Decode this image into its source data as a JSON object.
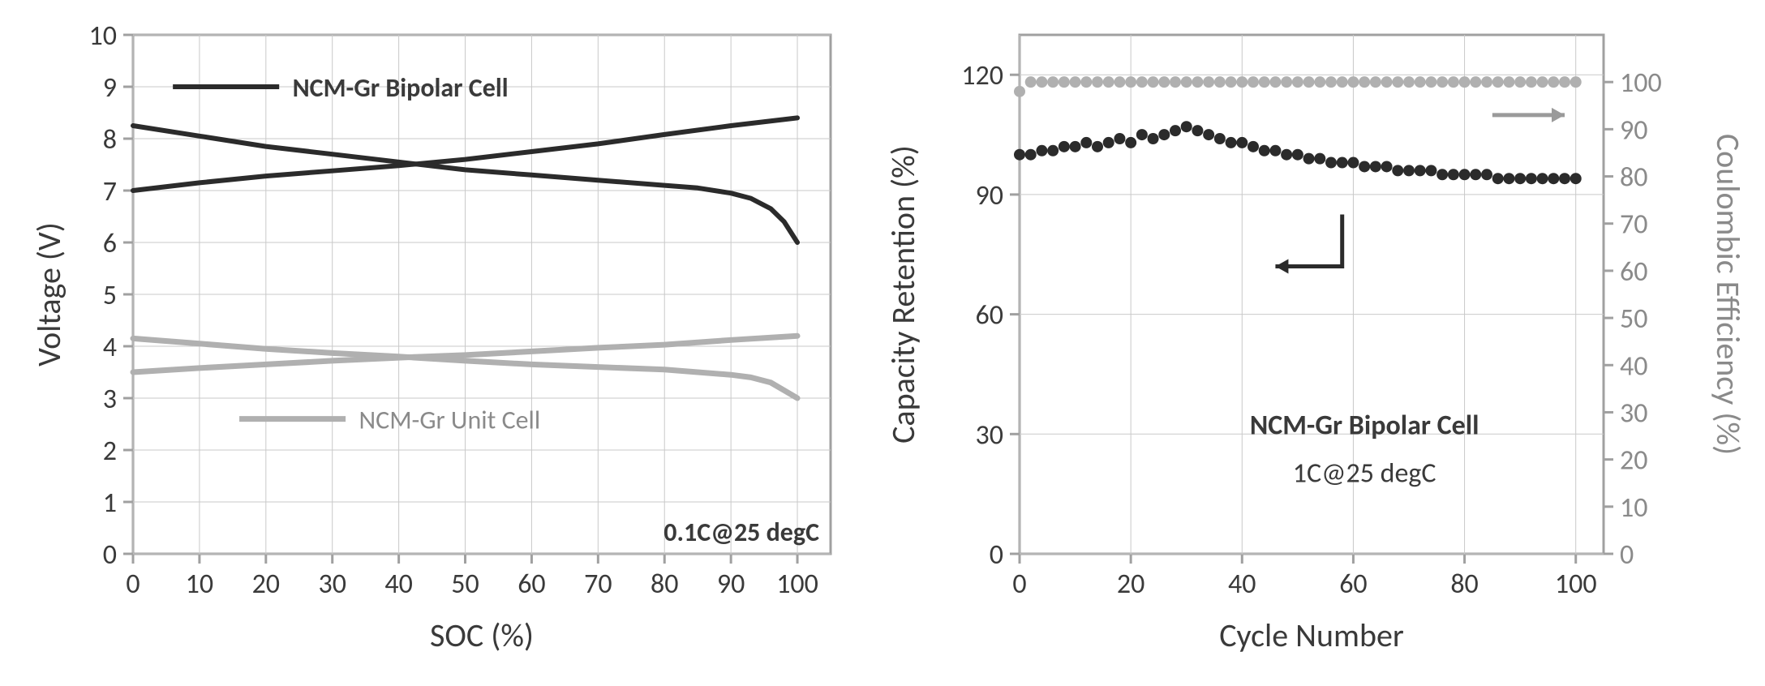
{
  "chart_left": {
    "type": "line",
    "conditions_label": "0.1C@25 degC",
    "xlabel": "SOC (%)",
    "ylabel": "Voltage (V)",
    "xlim": [
      0,
      105
    ],
    "ylim": [
      0,
      10
    ],
    "xticks": [
      0,
      10,
      20,
      30,
      40,
      50,
      60,
      70,
      80,
      90,
      100
    ],
    "yticks": [
      0,
      1,
      2,
      3,
      4,
      5,
      6,
      7,
      8,
      9,
      10
    ],
    "axis_label_fontsize": 40,
    "tick_fontsize": 34,
    "annotation_fontsize": 32,
    "axis_color": "#a0a0a0",
    "grid_color": "#c9c9c9",
    "background_color": "#ffffff",
    "text_color": "#3a3a3a",
    "series": {
      "bipolar_charge": {
        "label": "NCM-Gr Bipolar Cell",
        "color": "#2b2b2b",
        "width": 6,
        "x": [
          0,
          10,
          20,
          30,
          40,
          50,
          60,
          70,
          80,
          90,
          100
        ],
        "y": [
          7.0,
          7.15,
          7.28,
          7.38,
          7.48,
          7.6,
          7.75,
          7.9,
          8.08,
          8.25,
          8.4
        ]
      },
      "bipolar_discharge": {
        "color": "#2b2b2b",
        "width": 6,
        "x": [
          0,
          10,
          20,
          30,
          40,
          50,
          60,
          70,
          80,
          85,
          90,
          93,
          96,
          98,
          100
        ],
        "y": [
          8.25,
          8.05,
          7.85,
          7.7,
          7.55,
          7.4,
          7.3,
          7.2,
          7.1,
          7.05,
          6.95,
          6.85,
          6.65,
          6.4,
          6.0
        ]
      },
      "unit_charge": {
        "label": "NCM-Gr Unit Cell",
        "color": "#b0b0b0",
        "width": 7,
        "x": [
          0,
          10,
          20,
          30,
          40,
          50,
          60,
          70,
          80,
          90,
          100
        ],
        "y": [
          3.5,
          3.58,
          3.65,
          3.72,
          3.78,
          3.83,
          3.9,
          3.97,
          4.03,
          4.12,
          4.2
        ]
      },
      "unit_discharge": {
        "color": "#b0b0b0",
        "width": 7,
        "x": [
          0,
          10,
          20,
          30,
          40,
          50,
          60,
          70,
          80,
          85,
          90,
          93,
          96,
          98,
          100
        ],
        "y": [
          4.15,
          4.05,
          3.95,
          3.87,
          3.8,
          3.72,
          3.65,
          3.6,
          3.55,
          3.5,
          3.45,
          3.4,
          3.3,
          3.15,
          3.0
        ]
      }
    },
    "legend": {
      "bipolar": {
        "text": "NCM-Gr Bipolar Cell",
        "swatch_color": "#2b2b2b",
        "text_color": "#3a3a3a"
      },
      "unit": {
        "text": "NCM-Gr Unit Cell",
        "swatch_color": "#b0b0b0",
        "text_color": "#8a8a8a"
      }
    }
  },
  "chart_right": {
    "type": "scatter",
    "title_lines": [
      "NCM-Gr Bipolar Cell",
      "1C@25 degC"
    ],
    "xlabel": "Cycle Number",
    "ylabel_left": "Capacity Retention  (%)",
    "ylabel_right": "Coulombic Efficiency (%)",
    "xlim": [
      0,
      105
    ],
    "ylim_left": [
      0,
      130
    ],
    "ylim_right": [
      0,
      110
    ],
    "xticks": [
      0,
      20,
      40,
      60,
      80,
      100
    ],
    "yticks_left": [
      0,
      30,
      60,
      90,
      120
    ],
    "yticks_right": [
      0,
      10,
      20,
      30,
      40,
      50,
      60,
      70,
      80,
      90,
      100
    ],
    "axis_label_fontsize": 40,
    "tick_fontsize": 34,
    "annotation_fontsize": 34,
    "axis_color": "#a0a0a0",
    "grid_color": "#c9c9c9",
    "background_color": "#ffffff",
    "text_color_left": "#3a3a3a",
    "text_color_right": "#8a8a8a",
    "marker_radius": 7,
    "series": {
      "capacity": {
        "color": "#2b2b2b",
        "x": [
          0,
          2,
          4,
          6,
          8,
          10,
          12,
          14,
          16,
          18,
          20,
          22,
          24,
          26,
          28,
          30,
          32,
          34,
          36,
          38,
          40,
          42,
          44,
          46,
          48,
          50,
          52,
          54,
          56,
          58,
          60,
          62,
          64,
          66,
          68,
          70,
          72,
          74,
          76,
          78,
          80,
          82,
          84,
          86,
          88,
          90,
          92,
          94,
          96,
          98,
          100
        ],
        "y": [
          100,
          100,
          101,
          101,
          102,
          102,
          103,
          102,
          103,
          104,
          103,
          105,
          104,
          105,
          106,
          107,
          106,
          105,
          104,
          103,
          103,
          102,
          101,
          101,
          100,
          100,
          99,
          99,
          98,
          98,
          98,
          97,
          97,
          97,
          96,
          96,
          96,
          96,
          95,
          95,
          95,
          95,
          95,
          94,
          94,
          94,
          94,
          94,
          94,
          94,
          94
        ]
      },
      "efficiency": {
        "color": "#b0b0b0",
        "x": [
          0,
          2,
          4,
          6,
          8,
          10,
          12,
          14,
          16,
          18,
          20,
          22,
          24,
          26,
          28,
          30,
          32,
          34,
          36,
          38,
          40,
          42,
          44,
          46,
          48,
          50,
          52,
          54,
          56,
          58,
          60,
          62,
          64,
          66,
          68,
          70,
          72,
          74,
          76,
          78,
          80,
          82,
          84,
          86,
          88,
          90,
          92,
          94,
          96,
          98,
          100
        ],
        "y": [
          98,
          100,
          100,
          100,
          100,
          100,
          100,
          100,
          100,
          100,
          100,
          100,
          100,
          100,
          100,
          100,
          100,
          100,
          100,
          100,
          100,
          100,
          100,
          100,
          100,
          100,
          100,
          100,
          100,
          100,
          100,
          100,
          100,
          100,
          100,
          100,
          100,
          100,
          100,
          100,
          100,
          100,
          100,
          100,
          100,
          100,
          100,
          100,
          100,
          100,
          100
        ]
      }
    },
    "arrow_color_dark": "#2b2b2b",
    "arrow_color_light": "#9a9a9a"
  }
}
